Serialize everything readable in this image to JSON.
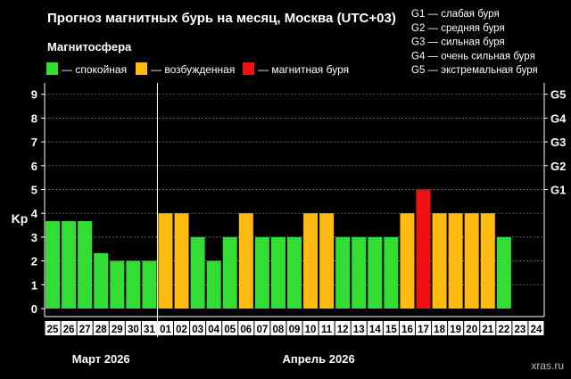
{
  "chart_data": {
    "type": "bar",
    "title": "Прогноз магнитных бурь на месяц, Москва (UTC+03)",
    "legend_title": "Магнитосфера",
    "legend": [
      {
        "label": "— спокойная",
        "color": "#33dd33"
      },
      {
        "label": "— возбужденная",
        "color": "#ffbb11"
      },
      {
        "label": "— магнитная буря",
        "color": "#ee1111"
      }
    ],
    "storm_scale_legend": [
      "G1 — слабая буря",
      "G2 — средняя буря",
      "G3 — сильная буря",
      "G4 — очень сильная буря",
      "G5 — экстремальная буря"
    ],
    "ylabel": "Kp",
    "ylim": [
      0,
      9
    ],
    "yticks": [
      "0",
      "1",
      "2",
      "3",
      "4",
      "5",
      "6",
      "7",
      "8",
      "9"
    ],
    "right_ticks": [
      {
        "label": "G1",
        "at": 5
      },
      {
        "label": "G2",
        "at": 6
      },
      {
        "label": "G3",
        "at": 7
      },
      {
        "label": "G4",
        "at": 8
      },
      {
        "label": "G5",
        "at": 9
      }
    ],
    "categories": [
      "25",
      "26",
      "27",
      "28",
      "29",
      "30",
      "31",
      "01",
      "02",
      "03",
      "04",
      "05",
      "06",
      "07",
      "08",
      "09",
      "10",
      "11",
      "12",
      "13",
      "14",
      "15",
      "16",
      "17",
      "18",
      "19",
      "20",
      "21",
      "22",
      "23",
      "24"
    ],
    "values": [
      3.67,
      3.67,
      3.67,
      2.33,
      2,
      2,
      2,
      4,
      4,
      3,
      2,
      3,
      4,
      3,
      3,
      3,
      4,
      4,
      3,
      3,
      3,
      3,
      4,
      5,
      4,
      4,
      4,
      4,
      3,
      null,
      null
    ],
    "levels": [
      "quiet",
      "quiet",
      "quiet",
      "quiet",
      "quiet",
      "quiet",
      "quiet",
      "active",
      "active",
      "quiet",
      "quiet",
      "quiet",
      "active",
      "quiet",
      "quiet",
      "quiet",
      "active",
      "active",
      "quiet",
      "quiet",
      "quiet",
      "quiet",
      "active",
      "storm",
      "active",
      "active",
      "active",
      "active",
      "quiet",
      null,
      null
    ],
    "level_colors": {
      "quiet": "#33dd33",
      "active": "#ffbb11",
      "storm": "#ee1111"
    },
    "month_labels": [
      {
        "label": "Март 2026",
        "from": 0,
        "to": 6
      },
      {
        "label": "Апрель 2026",
        "from": 7,
        "to": 30
      }
    ],
    "month_divider_after": 6,
    "grid": true,
    "watermark": "xras.ru"
  }
}
